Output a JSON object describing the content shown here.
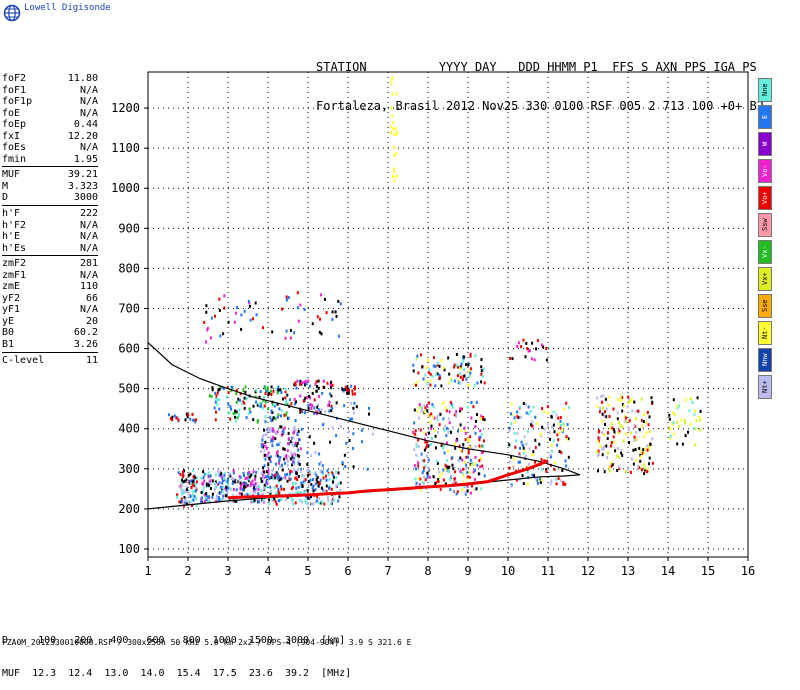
{
  "logo": {
    "text": "Lowell Digisonde",
    "icon": "globe-icon"
  },
  "header": {
    "line1": "STATION          YYYY DAY   DDD HHMM P1  FFS S AXN PPS IGA PS",
    "line2": "Fortaleza, Brasil 2012 Nov25 330 0100 RSF 005 2 713 100 +0+ B2"
  },
  "params": [
    {
      "name": "foF2",
      "value": "11.80"
    },
    {
      "name": "foF1",
      "value": "N/A"
    },
    {
      "name": "foF1p",
      "value": "N/A"
    },
    {
      "name": "foE",
      "value": "N/A"
    },
    {
      "name": "foEp",
      "value": "0.44"
    },
    {
      "name": "fxI",
      "value": "12.20"
    },
    {
      "name": "foEs",
      "value": "N/A"
    },
    {
      "name": "fmin",
      "value": "1.95"
    },
    {
      "sep": true
    },
    {
      "name": "MUF",
      "value": "39.21"
    },
    {
      "name": "M",
      "value": "3.323"
    },
    {
      "name": "D",
      "value": "3000"
    },
    {
      "sep": true
    },
    {
      "name": "h'F",
      "value": "222"
    },
    {
      "name": "h'F2",
      "value": "N/A"
    },
    {
      "name": "h'E",
      "value": "N/A"
    },
    {
      "name": "h'Es",
      "value": "N/A"
    },
    {
      "sep": true
    },
    {
      "name": "zmF2",
      "value": "281"
    },
    {
      "name": "zmF1",
      "value": "N/A"
    },
    {
      "name": "zmE",
      "value": "110"
    },
    {
      "name": "yF2",
      "value": "66"
    },
    {
      "name": "yF1",
      "value": "N/A"
    },
    {
      "name": "yE",
      "value": "20"
    },
    {
      "name": "B0",
      "value": "60.2"
    },
    {
      "name": "B1",
      "value": "3.26"
    },
    {
      "sep": true
    },
    {
      "name": "C-level",
      "value": "11"
    }
  ],
  "legend": [
    {
      "label": "Nne",
      "color": "#66eedd"
    },
    {
      "label": "E",
      "color": "#2277ee"
    },
    {
      "label": "W",
      "color": "#8800cc"
    },
    {
      "label": "Vo-",
      "color": "#ee22cc"
    },
    {
      "label": "Vo+",
      "color": "#ee0000"
    },
    {
      "label": "Ssw",
      "color": "#ff99aa"
    },
    {
      "label": "Vx-",
      "color": "#22bb22"
    },
    {
      "label": "Vx+",
      "color": "#ddee22"
    },
    {
      "label": "Sse",
      "color": "#ffaa00"
    },
    {
      "label": "Nt-",
      "color": "#ffff33"
    },
    {
      "label": "Nnw",
      "color": "#1144aa"
    },
    {
      "label": "Nt+",
      "color": "#bbbbee"
    }
  ],
  "muf_table": {
    "line1": "D     100   200   400   600   800  1000  1500  3000  [km]",
    "line2": "MUF  12.3  12.4  13.0  14.0  15.4  17.5  23.6  39.2  [MHz]"
  },
  "footer": "FZA0M_2012330010000.RSF / 300x256h 50 kHz 5.0 km 2x2 / DPS-4 (904-904)  3.9 S 321.6 E",
  "chart_data": {
    "type": "scatter",
    "xlim": [
      1,
      16
    ],
    "ylim": [
      80,
      1290
    ],
    "x_ticks": [
      1,
      2,
      3,
      4,
      5,
      6,
      7,
      8,
      9,
      10,
      11,
      12,
      13,
      14,
      15,
      16
    ],
    "y_ticks": [
      100,
      200,
      300,
      400,
      500,
      600,
      700,
      800,
      900,
      1000,
      1100,
      1200
    ],
    "grid": "dotted",
    "legend_position": "right",
    "traces": [
      {
        "name": "upper-profile",
        "color": "#000000",
        "x": [
          1.0,
          1.6,
          2.3,
          3.0,
          3.6,
          4.2,
          5.0,
          6.0,
          7.0,
          8.0,
          9.0,
          10.0,
          10.8,
          11.4,
          11.8
        ],
        "y": [
          615,
          560,
          525,
          500,
          480,
          465,
          445,
          420,
          395,
          370,
          350,
          335,
          318,
          300,
          285
        ]
      },
      {
        "name": "lower-profile",
        "color": "#000000",
        "x": [
          1.0,
          2.0,
          3.0,
          4.0,
          5.0,
          6.0,
          7.0,
          8.0,
          9.0,
          10.0,
          10.8,
          11.4,
          11.8
        ],
        "y": [
          200,
          210,
          220,
          228,
          235,
          240,
          246,
          253,
          262,
          272,
          280,
          282,
          285
        ]
      },
      {
        "name": "O-trace",
        "color": "#ee0000",
        "x": [
          3.0,
          3.5,
          4.0,
          4.5,
          5.0,
          5.5,
          6.0,
          6.5,
          7.6,
          8.0,
          8.5,
          9.0,
          9.5,
          10.0,
          10.5,
          11.0
        ],
        "y": [
          228,
          230,
          231,
          233,
          235,
          238,
          240,
          245,
          252,
          255,
          258,
          262,
          268,
          285,
          300,
          320
        ]
      }
    ],
    "clusters": [
      {
        "x": [
          1.7,
          2.2
        ],
        "y": [
          210,
          300
        ],
        "colors": [
          "#2277ee",
          "#000000",
          "#66eedd",
          "#ee0000",
          "#bbbbee"
        ],
        "n": 90
      },
      {
        "x": [
          2.3,
          4.0
        ],
        "y": [
          220,
          300
        ],
        "colors": [
          "#2277ee",
          "#66eedd",
          "#000000",
          "#bbbbee",
          "#ee22cc"
        ],
        "n": 230
      },
      {
        "x": [
          3.8,
          4.8
        ],
        "y": [
          280,
          410
        ],
        "colors": [
          "#bbbbee",
          "#000000",
          "#ee22cc",
          "#2277ee"
        ],
        "n": 160
      },
      {
        "x": [
          4.0,
          5.8
        ],
        "y": [
          215,
          300
        ],
        "colors": [
          "#66eedd",
          "#2277ee",
          "#000000",
          "#bbbbee",
          "#ee0000"
        ],
        "n": 200
      },
      {
        "x": [
          4.6,
          6.6
        ],
        "y": [
          300,
          470
        ],
        "colors": [
          "#bbbbee",
          "#000000",
          "#2277ee"
        ],
        "n": 60
      },
      {
        "x": [
          2.5,
          4.5
        ],
        "y": [
          420,
          510
        ],
        "colors": [
          "#000000",
          "#66eedd",
          "#2277ee",
          "#ee0000",
          "#22bb22"
        ],
        "n": 140
      },
      {
        "x": [
          4.5,
          5.6
        ],
        "y": [
          440,
          525
        ],
        "colors": [
          "#ee22cc",
          "#2277ee",
          "#000000",
          "#ee0000"
        ],
        "n": 70
      },
      {
        "x": [
          5.8,
          6.2
        ],
        "y": [
          490,
          510
        ],
        "colors": [
          "#2277ee",
          "#ee0000",
          "#000000"
        ],
        "n": 20
      },
      {
        "x": [
          7.6,
          9.4
        ],
        "y": [
          240,
          470
        ],
        "colors": [
          "#ffff33",
          "#2277ee",
          "#bbbbee",
          "#66eedd",
          "#ee22cc",
          "#000000",
          "#ee0000"
        ],
        "n": 280
      },
      {
        "x": [
          7.6,
          9.4
        ],
        "y": [
          510,
          590
        ],
        "colors": [
          "#ee0000",
          "#2277ee",
          "#ffff33",
          "#66eedd",
          "#000000"
        ],
        "n": 90
      },
      {
        "x": [
          10.0,
          11.5
        ],
        "y": [
          260,
          470
        ],
        "colors": [
          "#ffff33",
          "#ee0000",
          "#bbbbee",
          "#2277ee",
          "#66eedd",
          "#000000"
        ],
        "n": 160
      },
      {
        "x": [
          10.0,
          11.0
        ],
        "y": [
          575,
          630
        ],
        "colors": [
          "#ee0000",
          "#ee22cc",
          "#000000"
        ],
        "n": 20
      },
      {
        "x": [
          12.2,
          13.6
        ],
        "y": [
          290,
          490
        ],
        "colors": [
          "#ffff33",
          "#ddee22",
          "#bbbbee",
          "#000000",
          "#ee0000"
        ],
        "n": 170
      },
      {
        "x": [
          14.0,
          14.8
        ],
        "y": [
          360,
          490
        ],
        "colors": [
          "#ffff33",
          "#000000",
          "#66eedd",
          "#ddee22"
        ],
        "n": 40
      },
      {
        "x": [
          2.3,
          5.8
        ],
        "y": [
          620,
          745
        ],
        "colors": [
          "#000000",
          "#ee0000",
          "#ee22cc",
          "#2277ee"
        ],
        "n": 60
      },
      {
        "x": [
          1.5,
          2.2
        ],
        "y": [
          420,
          440
        ],
        "colors": [
          "#000000",
          "#2277ee",
          "#ee0000"
        ],
        "n": 20
      },
      {
        "x": [
          7.05,
          7.2
        ],
        "y": [
          1020,
          1290
        ],
        "colors": [
          "#ffff33"
        ],
        "n": 25
      }
    ]
  }
}
